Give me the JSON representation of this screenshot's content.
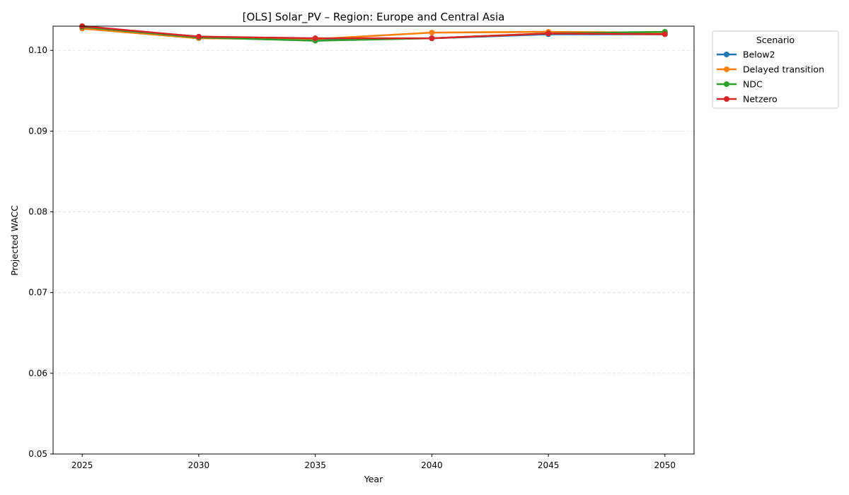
{
  "chart_data": {
    "type": "line",
    "title": "[OLS] Solar_PV – Region: Europe and Central Asia",
    "xlabel": "Year",
    "ylabel": "Projected WACC",
    "x": [
      2025,
      2030,
      2035,
      2040,
      2045,
      2050
    ],
    "x_ticks": [
      "2025",
      "2030",
      "2035",
      "2040",
      "2045",
      "2050"
    ],
    "y_ticks": [
      "0.05",
      "0.06",
      "0.07",
      "0.08",
      "0.09",
      "0.10"
    ],
    "ylim": [
      0.05,
      0.103
    ],
    "xlim": [
      2023.75,
      2051.25
    ],
    "grid": "y-dashed",
    "legend": {
      "title": "Scenario",
      "placement": "outside-top-right"
    },
    "series": [
      {
        "name": "Below2",
        "color": "#1f77b4",
        "values": [
          0.1029,
          0.1017,
          0.1014,
          0.1015,
          0.102,
          0.102
        ]
      },
      {
        "name": "Delayed transition",
        "color": "#ff7f0e",
        "values": [
          0.1027,
          0.1015,
          0.1014,
          0.1022,
          0.1023,
          0.1022
        ]
      },
      {
        "name": "NDC",
        "color": "#2ca02c",
        "values": [
          0.1029,
          0.1016,
          0.1012,
          0.1015,
          0.1021,
          0.1023
        ]
      },
      {
        "name": "Netzero",
        "color": "#d62728",
        "values": [
          0.103,
          0.1017,
          0.1015,
          0.1015,
          0.1021,
          0.102
        ]
      }
    ]
  }
}
